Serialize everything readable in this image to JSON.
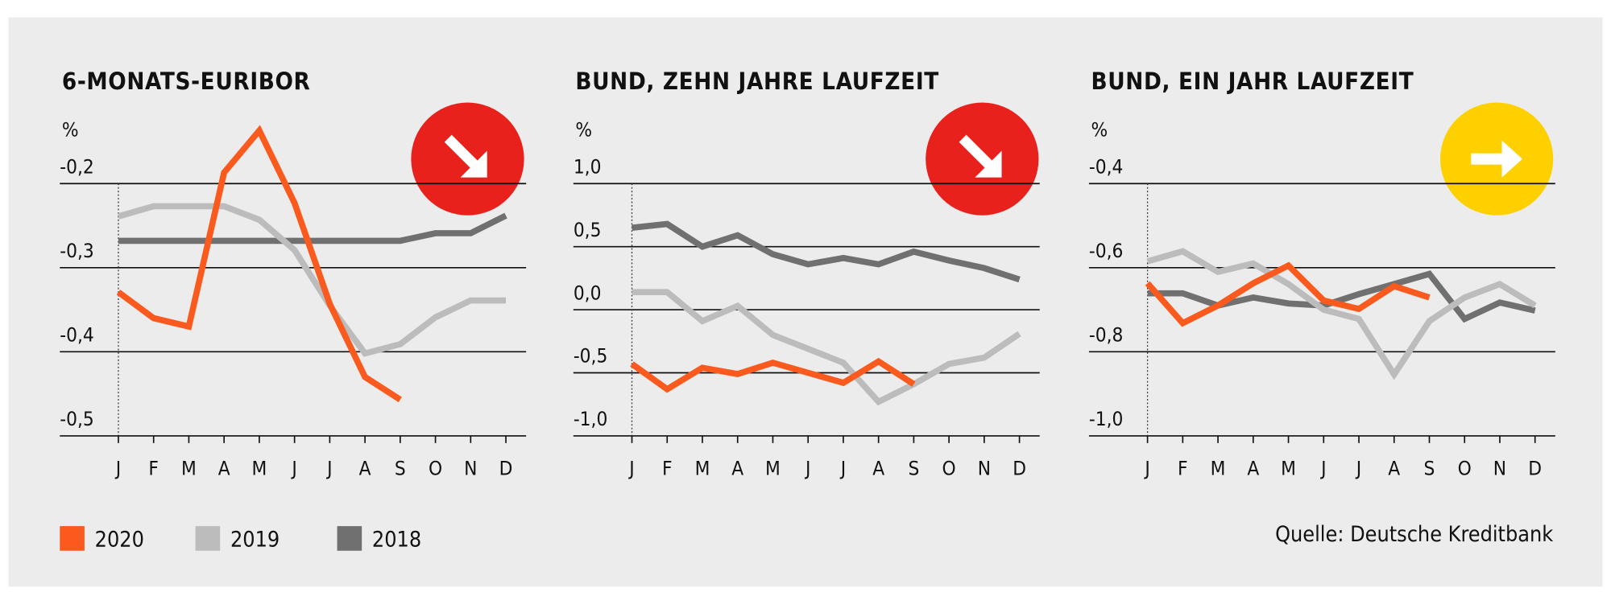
{
  "chart_data": [
    {
      "type": "line",
      "title": "6-MONATS-EURIBOR",
      "y_label": "%",
      "categories": [
        "J",
        "F",
        "M",
        "A",
        "M",
        "J",
        "J",
        "A",
        "S",
        "O",
        "N",
        "D"
      ],
      "ylim": [
        -0.5,
        -0.2
      ],
      "yticks": [
        {
          "value": -0.2,
          "label": "-0,2"
        },
        {
          "value": -0.3,
          "label": "-0,3"
        },
        {
          "value": -0.4,
          "label": "-0,4"
        },
        {
          "value": -0.5,
          "label": "-0,5"
        }
      ],
      "series": [
        {
          "name": "2020",
          "color": "#fa5a1e",
          "values": [
            -0.329,
            -0.36,
            -0.37,
            -0.187,
            -0.137,
            -0.223,
            -0.343,
            -0.43,
            -0.457,
            null,
            null,
            null
          ]
        },
        {
          "name": "2019",
          "color": "#bcbcbc",
          "values": [
            -0.239,
            -0.227,
            -0.227,
            -0.227,
            -0.243,
            -0.279,
            -0.345,
            -0.402,
            -0.391,
            -0.359,
            -0.339,
            -0.339
          ]
        },
        {
          "name": "2018",
          "color": "#707070",
          "values": [
            -0.268,
            -0.268,
            -0.268,
            -0.268,
            -0.268,
            -0.268,
            -0.268,
            -0.268,
            -0.268,
            -0.259,
            -0.259,
            -0.238
          ]
        }
      ]
    },
    {
      "type": "line",
      "title": "BUND, ZEHN JAHRE LAUFZEIT",
      "y_label": "%",
      "categories": [
        "J",
        "F",
        "M",
        "A",
        "M",
        "J",
        "J",
        "A",
        "S",
        "O",
        "N",
        "D"
      ],
      "ylim": [
        -1.0,
        1.0
      ],
      "yticks": [
        {
          "value": 1.0,
          "label": "1,0"
        },
        {
          "value": 0.5,
          "label": "0,5"
        },
        {
          "value": 0.0,
          "label": "0,0"
        },
        {
          "value": -0.5,
          "label": "-0,5"
        },
        {
          "value": -1.0,
          "label": "-1,0"
        }
      ],
      "series": [
        {
          "name": "2020",
          "color": "#fa5a1e",
          "values": [
            -0.43,
            -0.63,
            -0.46,
            -0.51,
            -0.42,
            -0.5,
            -0.58,
            -0.41,
            -0.59,
            null,
            null,
            null
          ]
        },
        {
          "name": "2019",
          "color": "#bcbcbc",
          "values": [
            0.14,
            0.14,
            -0.09,
            0.03,
            -0.2,
            -0.31,
            -0.42,
            -0.73,
            -0.59,
            -0.43,
            -0.38,
            -0.19
          ]
        },
        {
          "name": "2018",
          "color": "#707070",
          "values": [
            0.65,
            0.68,
            0.5,
            0.59,
            0.44,
            0.36,
            0.41,
            0.36,
            0.46,
            0.39,
            0.33,
            0.24
          ]
        }
      ]
    },
    {
      "type": "line",
      "title": "BUND, EIN JAHR LAUFZEIT",
      "y_label": "%",
      "categories": [
        "J",
        "F",
        "M",
        "A",
        "M",
        "J",
        "J",
        "A",
        "S",
        "O",
        "N",
        "D"
      ],
      "ylim": [
        -1.0,
        -0.4
      ],
      "yticks": [
        {
          "value": -0.4,
          "label": "-0,4"
        },
        {
          "value": -0.6,
          "label": "-0,6"
        },
        {
          "value": -0.8,
          "label": "-0,8"
        },
        {
          "value": -1.0,
          "label": "-1,0"
        }
      ],
      "series": [
        {
          "name": "2020",
          "color": "#fa5a1e",
          "values": [
            -0.637,
            -0.732,
            -0.69,
            -0.637,
            -0.595,
            -0.678,
            -0.698,
            -0.644,
            -0.671,
            null,
            null,
            null
          ]
        },
        {
          "name": "2019",
          "color": "#bcbcbc",
          "values": [
            -0.585,
            -0.561,
            -0.61,
            -0.59,
            -0.639,
            -0.7,
            -0.722,
            -0.854,
            -0.727,
            -0.671,
            -0.639,
            -0.69
          ]
        },
        {
          "name": "2018",
          "color": "#707070",
          "values": [
            -0.661,
            -0.661,
            -0.69,
            -0.671,
            -0.685,
            -0.69,
            -0.663,
            -0.639,
            -0.615,
            -0.722,
            -0.683,
            -0.702
          ]
        }
      ]
    }
  ],
  "source": "Quelle: Deutsche Kreditbank"
}
